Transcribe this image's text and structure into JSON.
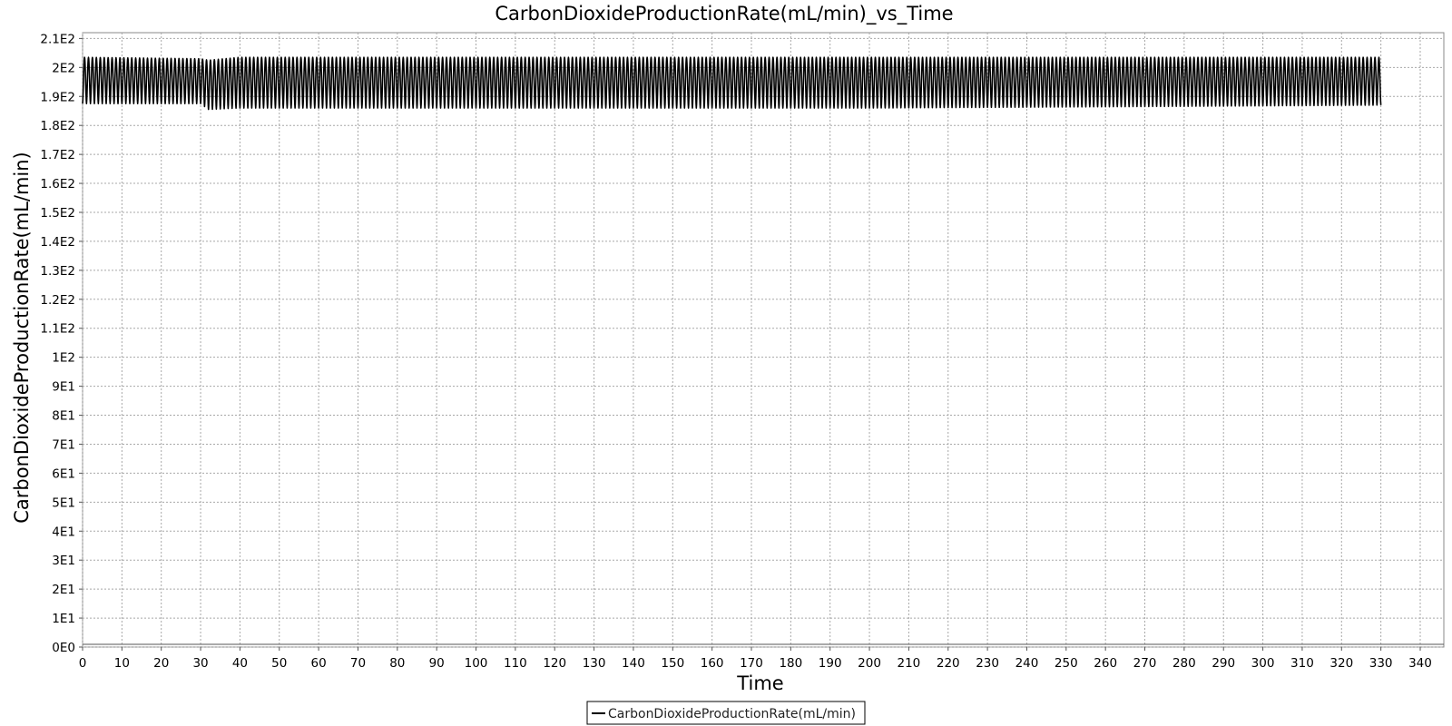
{
  "chart_data": {
    "type": "line",
    "title": "CarbonDioxideProductionRate(mL/min)_vs_Time",
    "xlabel": "Time",
    "ylabel": "CarbonDioxideProductionRate(mL/min)",
    "xlim": [
      0,
      346
    ],
    "ylim": [
      0,
      212
    ],
    "x_ticks": [
      0,
      10,
      20,
      30,
      40,
      50,
      60,
      70,
      80,
      90,
      100,
      110,
      120,
      130,
      140,
      150,
      160,
      170,
      180,
      190,
      200,
      210,
      220,
      230,
      240,
      250,
      260,
      270,
      280,
      290,
      300,
      310,
      320,
      330,
      340
    ],
    "y_ticks": [
      {
        "value": 0,
        "label": "0E0"
      },
      {
        "value": 10,
        "label": "1E1"
      },
      {
        "value": 20,
        "label": "2E1"
      },
      {
        "value": 30,
        "label": "3E1"
      },
      {
        "value": 40,
        "label": "4E1"
      },
      {
        "value": 50,
        "label": "5E1"
      },
      {
        "value": 60,
        "label": "6E1"
      },
      {
        "value": 70,
        "label": "7E1"
      },
      {
        "value": 80,
        "label": "8E1"
      },
      {
        "value": 90,
        "label": "9E1"
      },
      {
        "value": 100,
        "label": "1E2"
      },
      {
        "value": 110,
        "label": "1.1E2"
      },
      {
        "value": 120,
        "label": "1.2E2"
      },
      {
        "value": 130,
        "label": "1.3E2"
      },
      {
        "value": 140,
        "label": "1.4E2"
      },
      {
        "value": 150,
        "label": "1.5E2"
      },
      {
        "value": 160,
        "label": "1.6E2"
      },
      {
        "value": 170,
        "label": "1.7E2"
      },
      {
        "value": 180,
        "label": "1.8E2"
      },
      {
        "value": 190,
        "label": "1.9E2"
      },
      {
        "value": 200,
        "label": "2E2"
      },
      {
        "value": 210,
        "label": "2.1E2"
      }
    ],
    "grid": true,
    "legend_position": "bottom-center",
    "series": [
      {
        "name": "CarbonDioxideProductionRate(mL/min)",
        "color": "#000000",
        "x_range": [
          0,
          330
        ],
        "oscillation_period": 1.0,
        "envelope": [
          {
            "x": 0,
            "min": 187.5,
            "max": 203.5
          },
          {
            "x": 30,
            "min": 187.5,
            "max": 203.0
          },
          {
            "x": 32,
            "min": 185.5,
            "max": 202.5
          },
          {
            "x": 40,
            "min": 186.0,
            "max": 203.5
          },
          {
            "x": 100,
            "min": 186.0,
            "max": 203.5
          },
          {
            "x": 200,
            "min": 186.0,
            "max": 203.5
          },
          {
            "x": 270,
            "min": 186.5,
            "max": 203.5
          },
          {
            "x": 330,
            "min": 187.0,
            "max": 203.5
          }
        ]
      }
    ]
  }
}
